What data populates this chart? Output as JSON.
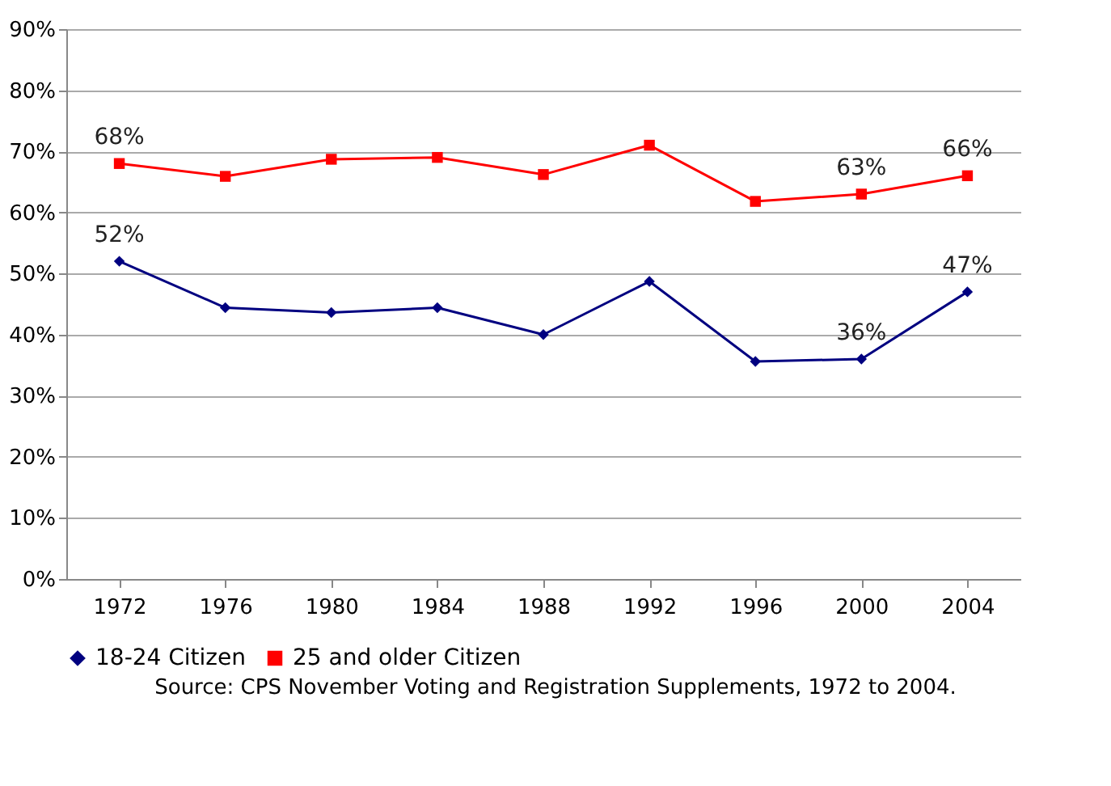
{
  "chart_data": {
    "type": "line",
    "categories": [
      "1972",
      "1976",
      "1980",
      "1984",
      "1988",
      "1992",
      "1996",
      "2000",
      "2004"
    ],
    "series": [
      {
        "name": "18-24 Citizen",
        "color": "#000080",
        "marker": "diamond",
        "values": [
          52,
          44.4,
          43.6,
          44.4,
          40,
          48.7,
          35.6,
          36,
          47
        ],
        "value_labels": [
          "52%",
          null,
          null,
          null,
          null,
          null,
          null,
          "36%",
          "47%"
        ]
      },
      {
        "name": "25 and older Citizen",
        "color": "#ff0000",
        "marker": "square",
        "values": [
          68,
          65.9,
          68.7,
          69,
          66.2,
          71,
          61.8,
          63,
          66
        ],
        "value_labels": [
          "68%",
          null,
          null,
          null,
          null,
          null,
          null,
          "63%",
          "66%"
        ]
      }
    ],
    "ylim": [
      0,
      90
    ],
    "yticks": [
      {
        "value": 0,
        "label": "0%"
      },
      {
        "value": 10,
        "label": "10%"
      },
      {
        "value": 20,
        "label": "20%"
      },
      {
        "value": 30,
        "label": "30%"
      },
      {
        "value": 40,
        "label": "40%"
      },
      {
        "value": 50,
        "label": "50%"
      },
      {
        "value": 60,
        "label": "60%"
      },
      {
        "value": 70,
        "label": "70%"
      },
      {
        "value": 80,
        "label": "80%"
      },
      {
        "value": 90,
        "label": "90%"
      }
    ],
    "grid": "y",
    "legend": "bottom",
    "annotations": [
      "Source: CPS November Voting and Registration Supplements, 1972 to 2004."
    ]
  }
}
